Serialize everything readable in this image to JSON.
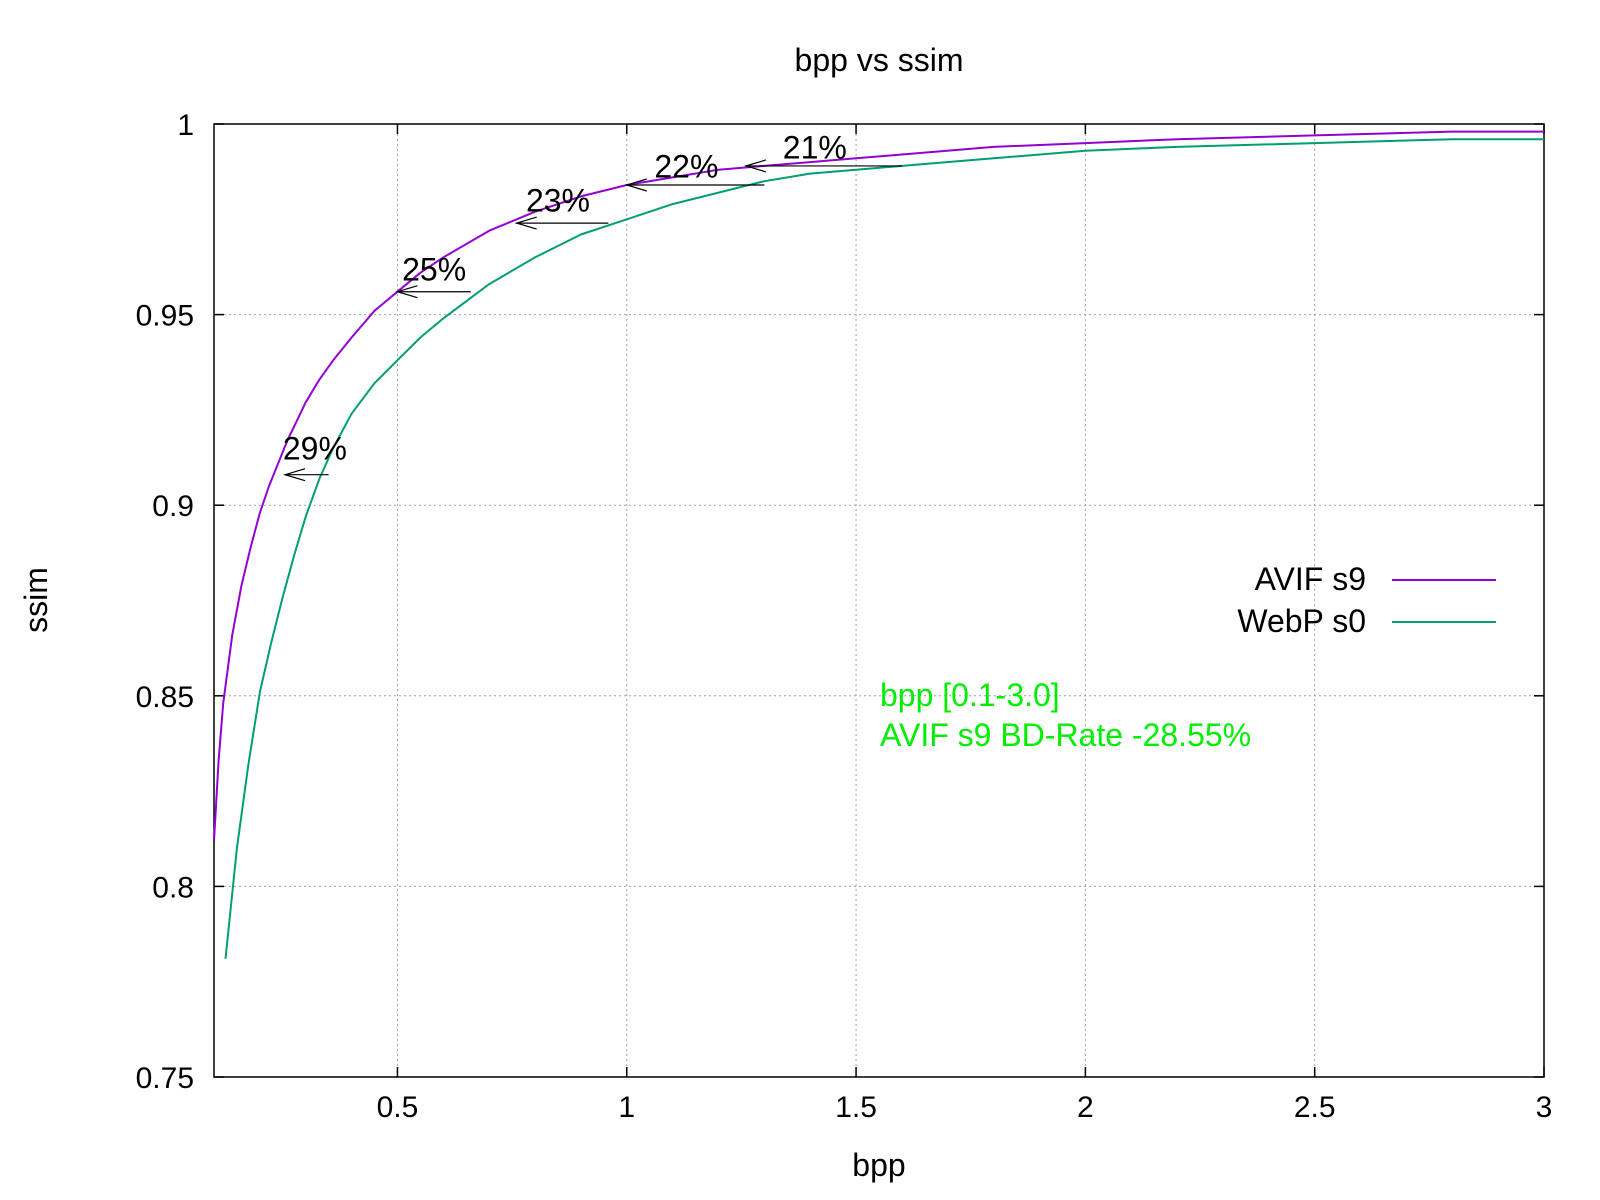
{
  "chart_data": {
    "type": "line",
    "title": "bpp vs ssim",
    "xlabel": "bpp",
    "ylabel": "ssim",
    "xlim": [
      0.1,
      3.0
    ],
    "ylim": [
      0.75,
      1.0
    ],
    "x_ticks": [
      0.5,
      1,
      1.5,
      2,
      2.5,
      3
    ],
    "y_ticks": [
      0.75,
      0.8,
      0.85,
      0.9,
      0.95,
      1
    ],
    "grid": true,
    "legend_position": "right",
    "series": [
      {
        "name": "AVIF s9",
        "color": "#9400d3",
        "x": [
          0.1,
          0.11,
          0.12,
          0.14,
          0.16,
          0.18,
          0.2,
          0.22,
          0.24,
          0.26,
          0.28,
          0.3,
          0.33,
          0.36,
          0.4,
          0.45,
          0.5,
          0.55,
          0.6,
          0.7,
          0.8,
          0.9,
          1.0,
          1.1,
          1.2,
          1.3,
          1.4,
          1.5,
          1.6,
          1.8,
          2.0,
          2.2,
          2.5,
          2.8,
          3.0
        ],
        "y": [
          0.812,
          0.833,
          0.848,
          0.866,
          0.879,
          0.889,
          0.898,
          0.905,
          0.911,
          0.917,
          0.922,
          0.927,
          0.933,
          0.938,
          0.944,
          0.951,
          0.956,
          0.961,
          0.965,
          0.972,
          0.977,
          0.981,
          0.984,
          0.986,
          0.988,
          0.989,
          0.99,
          0.991,
          0.992,
          0.994,
          0.995,
          0.996,
          0.997,
          0.998,
          0.998
        ]
      },
      {
        "name": "WebP s0",
        "color": "#009e73",
        "x": [
          0.125,
          0.15,
          0.175,
          0.2,
          0.225,
          0.25,
          0.275,
          0.3,
          0.33,
          0.36,
          0.4,
          0.45,
          0.5,
          0.55,
          0.6,
          0.7,
          0.8,
          0.9,
          1.0,
          1.1,
          1.2,
          1.3,
          1.4,
          1.5,
          1.6,
          1.8,
          2.0,
          2.2,
          2.5,
          2.8,
          3.0
        ],
        "y": [
          0.781,
          0.81,
          0.832,
          0.851,
          0.864,
          0.876,
          0.887,
          0.897,
          0.907,
          0.915,
          0.924,
          0.932,
          0.938,
          0.944,
          0.949,
          0.958,
          0.965,
          0.971,
          0.975,
          0.979,
          0.982,
          0.985,
          0.987,
          0.988,
          0.989,
          0.991,
          0.993,
          0.994,
          0.995,
          0.996,
          0.996
        ]
      }
    ],
    "annotations": [
      {
        "label": "29%",
        "text_x": 0.32,
        "text_y": 0.912,
        "arrow_from": [
          0.35,
          0.908
        ],
        "arrow_to": [
          0.255,
          0.908
        ]
      },
      {
        "label": "25%",
        "text_x": 0.58,
        "text_y": 0.959,
        "arrow_from": [
          0.66,
          0.956
        ],
        "arrow_to": [
          0.5,
          0.956
        ]
      },
      {
        "label": "23%",
        "text_x": 0.85,
        "text_y": 0.977,
        "arrow_from": [
          0.96,
          0.974
        ],
        "arrow_to": [
          0.76,
          0.974
        ]
      },
      {
        "label": "22%",
        "text_x": 1.13,
        "text_y": 0.986,
        "arrow_from": [
          1.3,
          0.984
        ],
        "arrow_to": [
          1.0,
          0.984
        ]
      },
      {
        "label": "21%",
        "text_x": 1.41,
        "text_y": 0.991,
        "arrow_from": [
          1.6,
          0.989
        ],
        "arrow_to": [
          1.26,
          0.989
        ]
      }
    ],
    "info": {
      "color": "#00ee00",
      "lines": [
        "bpp [0.1-3.0]",
        "AVIF s9 BD-Rate -28.55%"
      ]
    }
  }
}
